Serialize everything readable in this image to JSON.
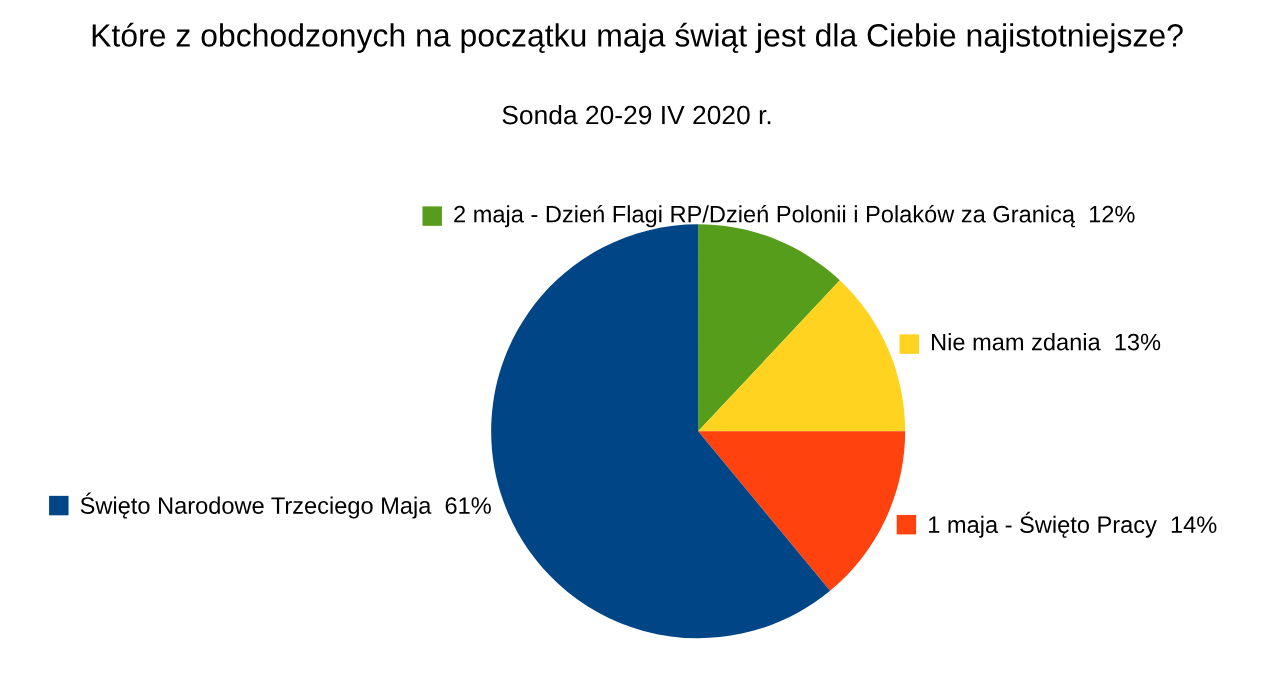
{
  "chart_data": {
    "type": "pie",
    "title": "Które z obchodzonych na początku maja świąt jest dla Ciebie najistotniejsze?",
    "subtitle": "Sonda 20-29 IV 2020 r.",
    "categories": [
      "2 maja - Dzień Flagi RP/Dzień Polonii i Polaków za Granicą",
      "Nie mam zdania",
      "1 maja - Święto Pracy",
      "Święto Narodowe Trzeciego Maja"
    ],
    "values": [
      12,
      13,
      14,
      61
    ],
    "value_labels": [
      "12%",
      "13%",
      "14%",
      "61%"
    ],
    "colors": [
      "#579d1c",
      "#ffd320",
      "#ff420e",
      "#004586"
    ],
    "legend": "top left"
  }
}
